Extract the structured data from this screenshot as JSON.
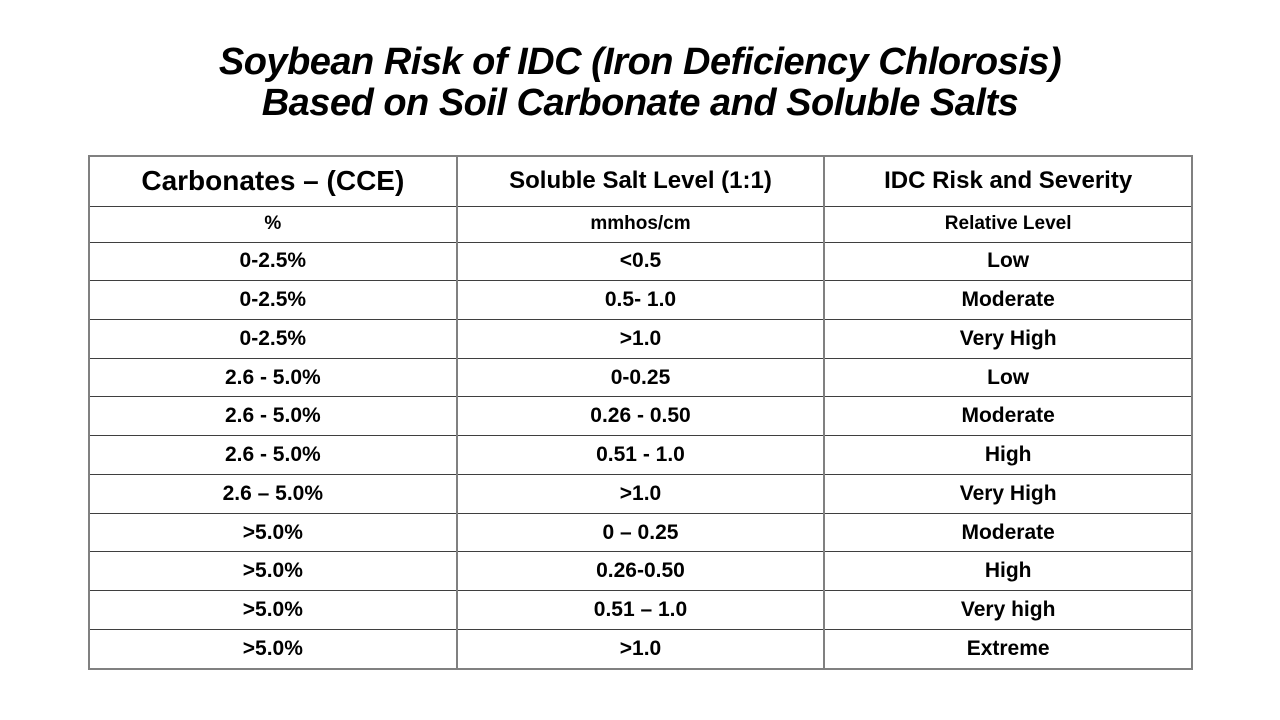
{
  "slide": {
    "title_line1": "Soybean Risk of IDC (Iron Deficiency Chlorosis)",
    "title_line2": "Based on Soil Carbonate and Soluble Salts"
  },
  "table": {
    "column_headers": [
      "Carbonates – (CCE)",
      "Soluble Salt Level (1:1)",
      "IDC Risk and Severity"
    ],
    "unit_headers": [
      "%",
      "mmhos/cm",
      "Relative Level"
    ],
    "rows": [
      {
        "carbonates": "0-2.5%",
        "soluble_salt": "<0.5",
        "idc_risk": "Low"
      },
      {
        "carbonates": "0-2.5%",
        "soluble_salt": "0.5- 1.0",
        "idc_risk": "Moderate"
      },
      {
        "carbonates": "0-2.5%",
        "soluble_salt": ">1.0",
        "idc_risk": "Very High"
      },
      {
        "carbonates": "2.6 - 5.0%",
        "soluble_salt": "0-0.25",
        "idc_risk": "Low"
      },
      {
        "carbonates": "2.6 - 5.0%",
        "soluble_salt": "0.26 - 0.50",
        "idc_risk": "Moderate"
      },
      {
        "carbonates": "2.6 - 5.0%",
        "soluble_salt": "0.51 - 1.0",
        "idc_risk": "High"
      },
      {
        "carbonates": "2.6 – 5.0%",
        "soluble_salt": ">1.0",
        "idc_risk": "Very High"
      },
      {
        "carbonates": ">5.0%",
        "soluble_salt": "0 – 0.25",
        "idc_risk": "Moderate"
      },
      {
        "carbonates": ">5.0%",
        "soluble_salt": "0.26-0.50",
        "idc_risk": "High"
      },
      {
        "carbonates": ">5.0%",
        "soluble_salt": "0.51 – 1.0",
        "idc_risk": "Very high"
      },
      {
        "carbonates": ">5.0%",
        "soluble_salt": ">1.0",
        "idc_risk": "Extreme"
      }
    ],
    "colors": {
      "background": "#ffffff",
      "text": "#000000",
      "table_frame": "#808080",
      "row_line": "#3f3f3f"
    }
  }
}
